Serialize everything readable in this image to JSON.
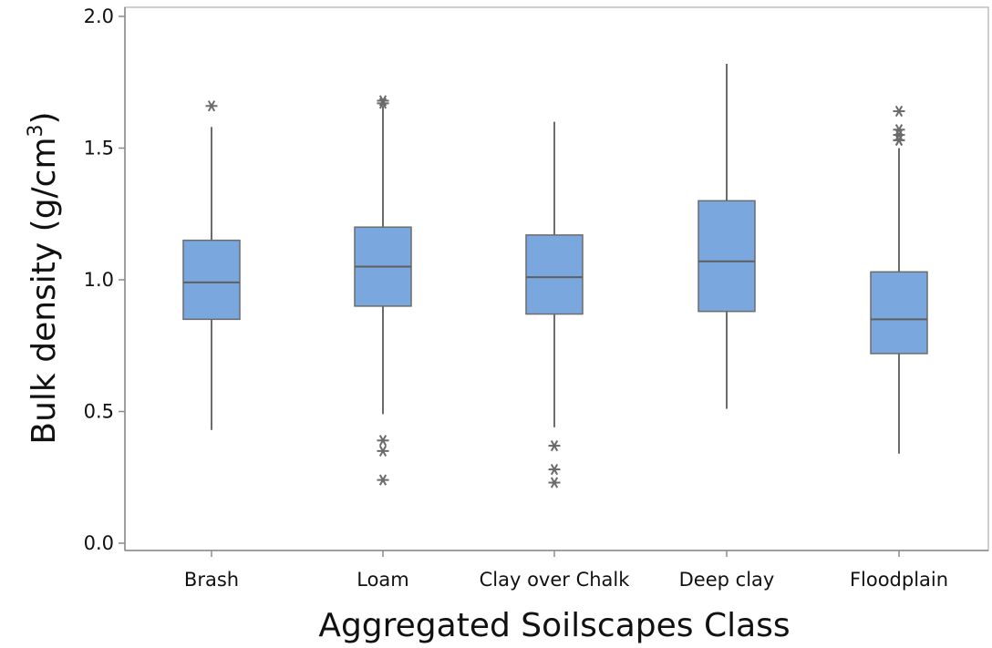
{
  "chart_data": {
    "type": "box",
    "title": "",
    "xlabel": "Aggregated Soilscapes Class",
    "ylabel": "Bulk density (g/cm",
    "ylabel_superscript": "3",
    "ylabel_close": ")",
    "ylim": [
      0.0,
      2.0
    ],
    "yticks": [
      "0.0",
      "0.5",
      "1.0",
      "1.5",
      "2.0"
    ],
    "ytick_values": [
      0.0,
      0.5,
      1.0,
      1.5,
      2.0
    ],
    "grid": false,
    "legend": "none",
    "box_color": "#7aa7dd",
    "box_edge_color": "#6b6b6b",
    "whisker_color": "#6b6b6b",
    "outlier_marker": "asterisk",
    "categories": [
      "Brash",
      "Loam",
      "Clay over Chalk",
      "Deep clay",
      "Floodplain"
    ],
    "boxes": [
      {
        "category": "Brash",
        "whisker_low": 0.43,
        "q1": 0.85,
        "median": 0.99,
        "q3": 1.15,
        "whisker_high": 1.58,
        "outliers": [
          1.66
        ]
      },
      {
        "category": "Loam",
        "whisker_low": 0.49,
        "q1": 0.9,
        "median": 1.05,
        "q3": 1.2,
        "whisker_high": 1.66,
        "outliers": [
          1.67,
          1.68,
          0.39,
          0.35,
          0.24
        ]
      },
      {
        "category": "Clay over Chalk",
        "whisker_low": 0.44,
        "q1": 0.87,
        "median": 1.01,
        "q3": 1.17,
        "whisker_high": 1.6,
        "outliers": [
          0.37,
          0.28,
          0.23
        ]
      },
      {
        "category": "Deep clay",
        "whisker_low": 0.51,
        "q1": 0.88,
        "median": 1.07,
        "q3": 1.3,
        "whisker_high": 1.82,
        "outliers": []
      },
      {
        "category": "Floodplain",
        "whisker_low": 0.34,
        "q1": 0.72,
        "median": 0.85,
        "q3": 1.03,
        "whisker_high": 1.5,
        "outliers": [
          1.64,
          1.57,
          1.55,
          1.53,
          1.53
        ]
      }
    ]
  }
}
